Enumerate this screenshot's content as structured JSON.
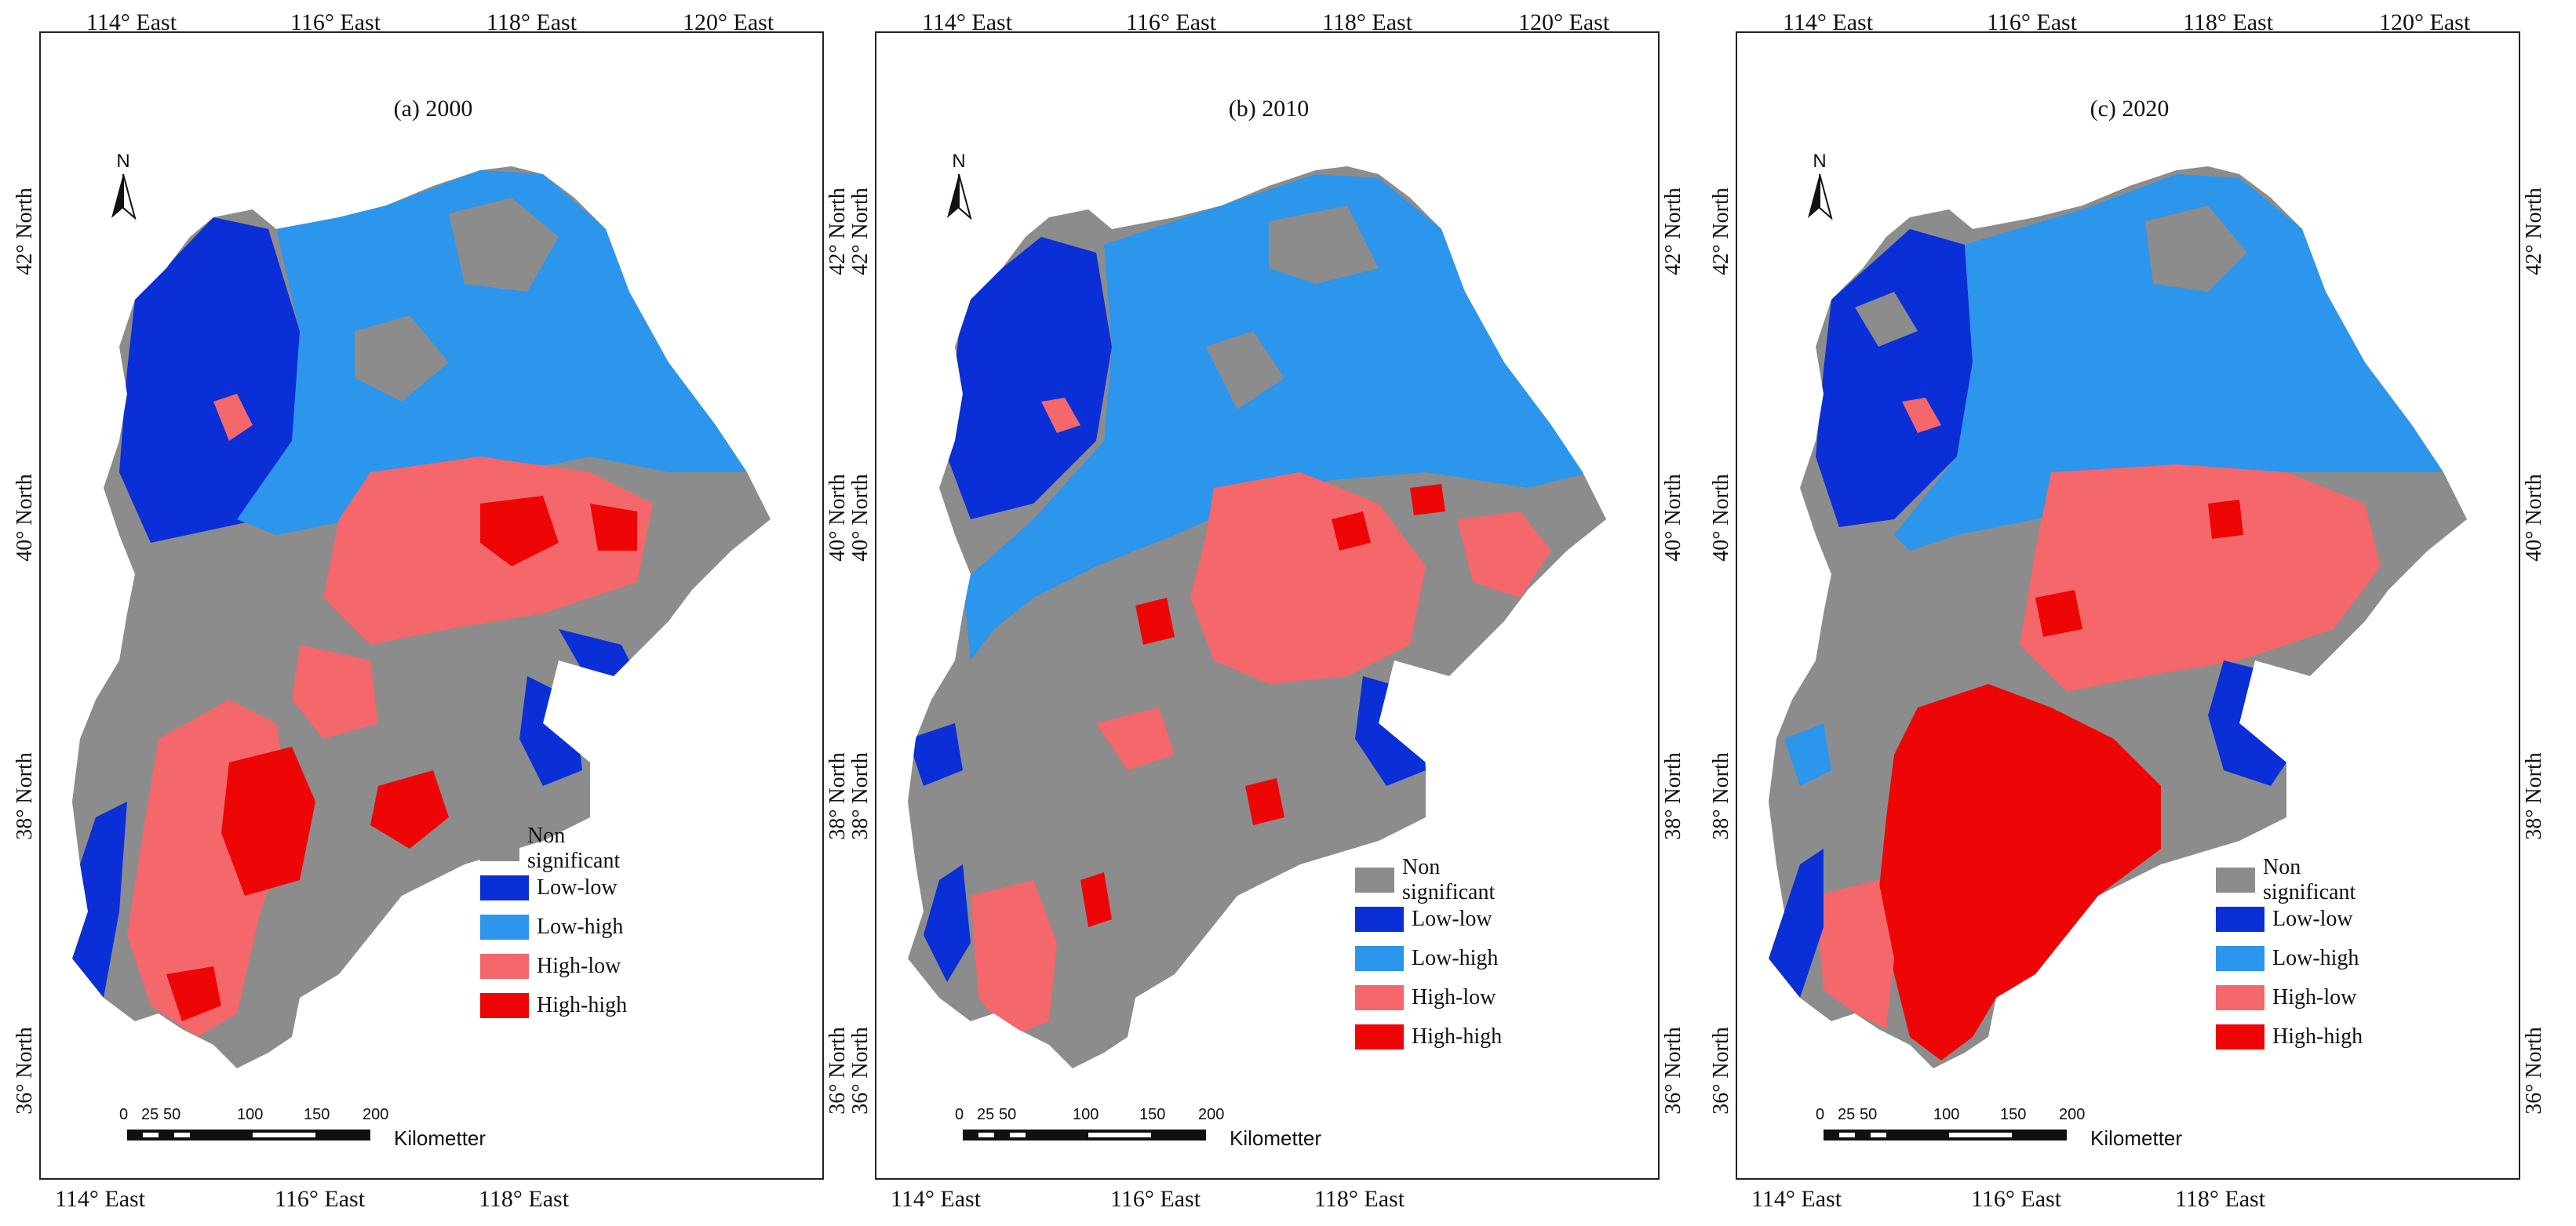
{
  "legend": [
    {
      "label": "Non significant",
      "color": "#8c8c8c"
    },
    {
      "label": "Low-low",
      "color": "#0a2fd6"
    },
    {
      "label": "Low-high",
      "color": "#2c95ec"
    },
    {
      "label": "High-low",
      "color": "#f4676a"
    },
    {
      "label": "High-high",
      "color": "#ee0606"
    }
  ],
  "axes": {
    "top_ticks": [
      "114° East",
      "116° East",
      "118° East",
      "120° East"
    ],
    "bottom_ticks": [
      "114° East",
      "116° East",
      "118° East"
    ],
    "left_ticks": [
      "42° North",
      "40° North",
      "38° North",
      "36° North"
    ],
    "right_ticks": [
      "42° North",
      "40° North",
      "38° North",
      "36° North"
    ]
  },
  "north_label": "N",
  "scale": {
    "numbers": [
      "0",
      "25",
      "50",
      "100",
      "150",
      "200"
    ],
    "unit": "Kilometter"
  },
  "panels": [
    {
      "title": "(a)   2000"
    },
    {
      "title": "(b)   2010"
    },
    {
      "title": "(c)   2020"
    }
  ]
}
